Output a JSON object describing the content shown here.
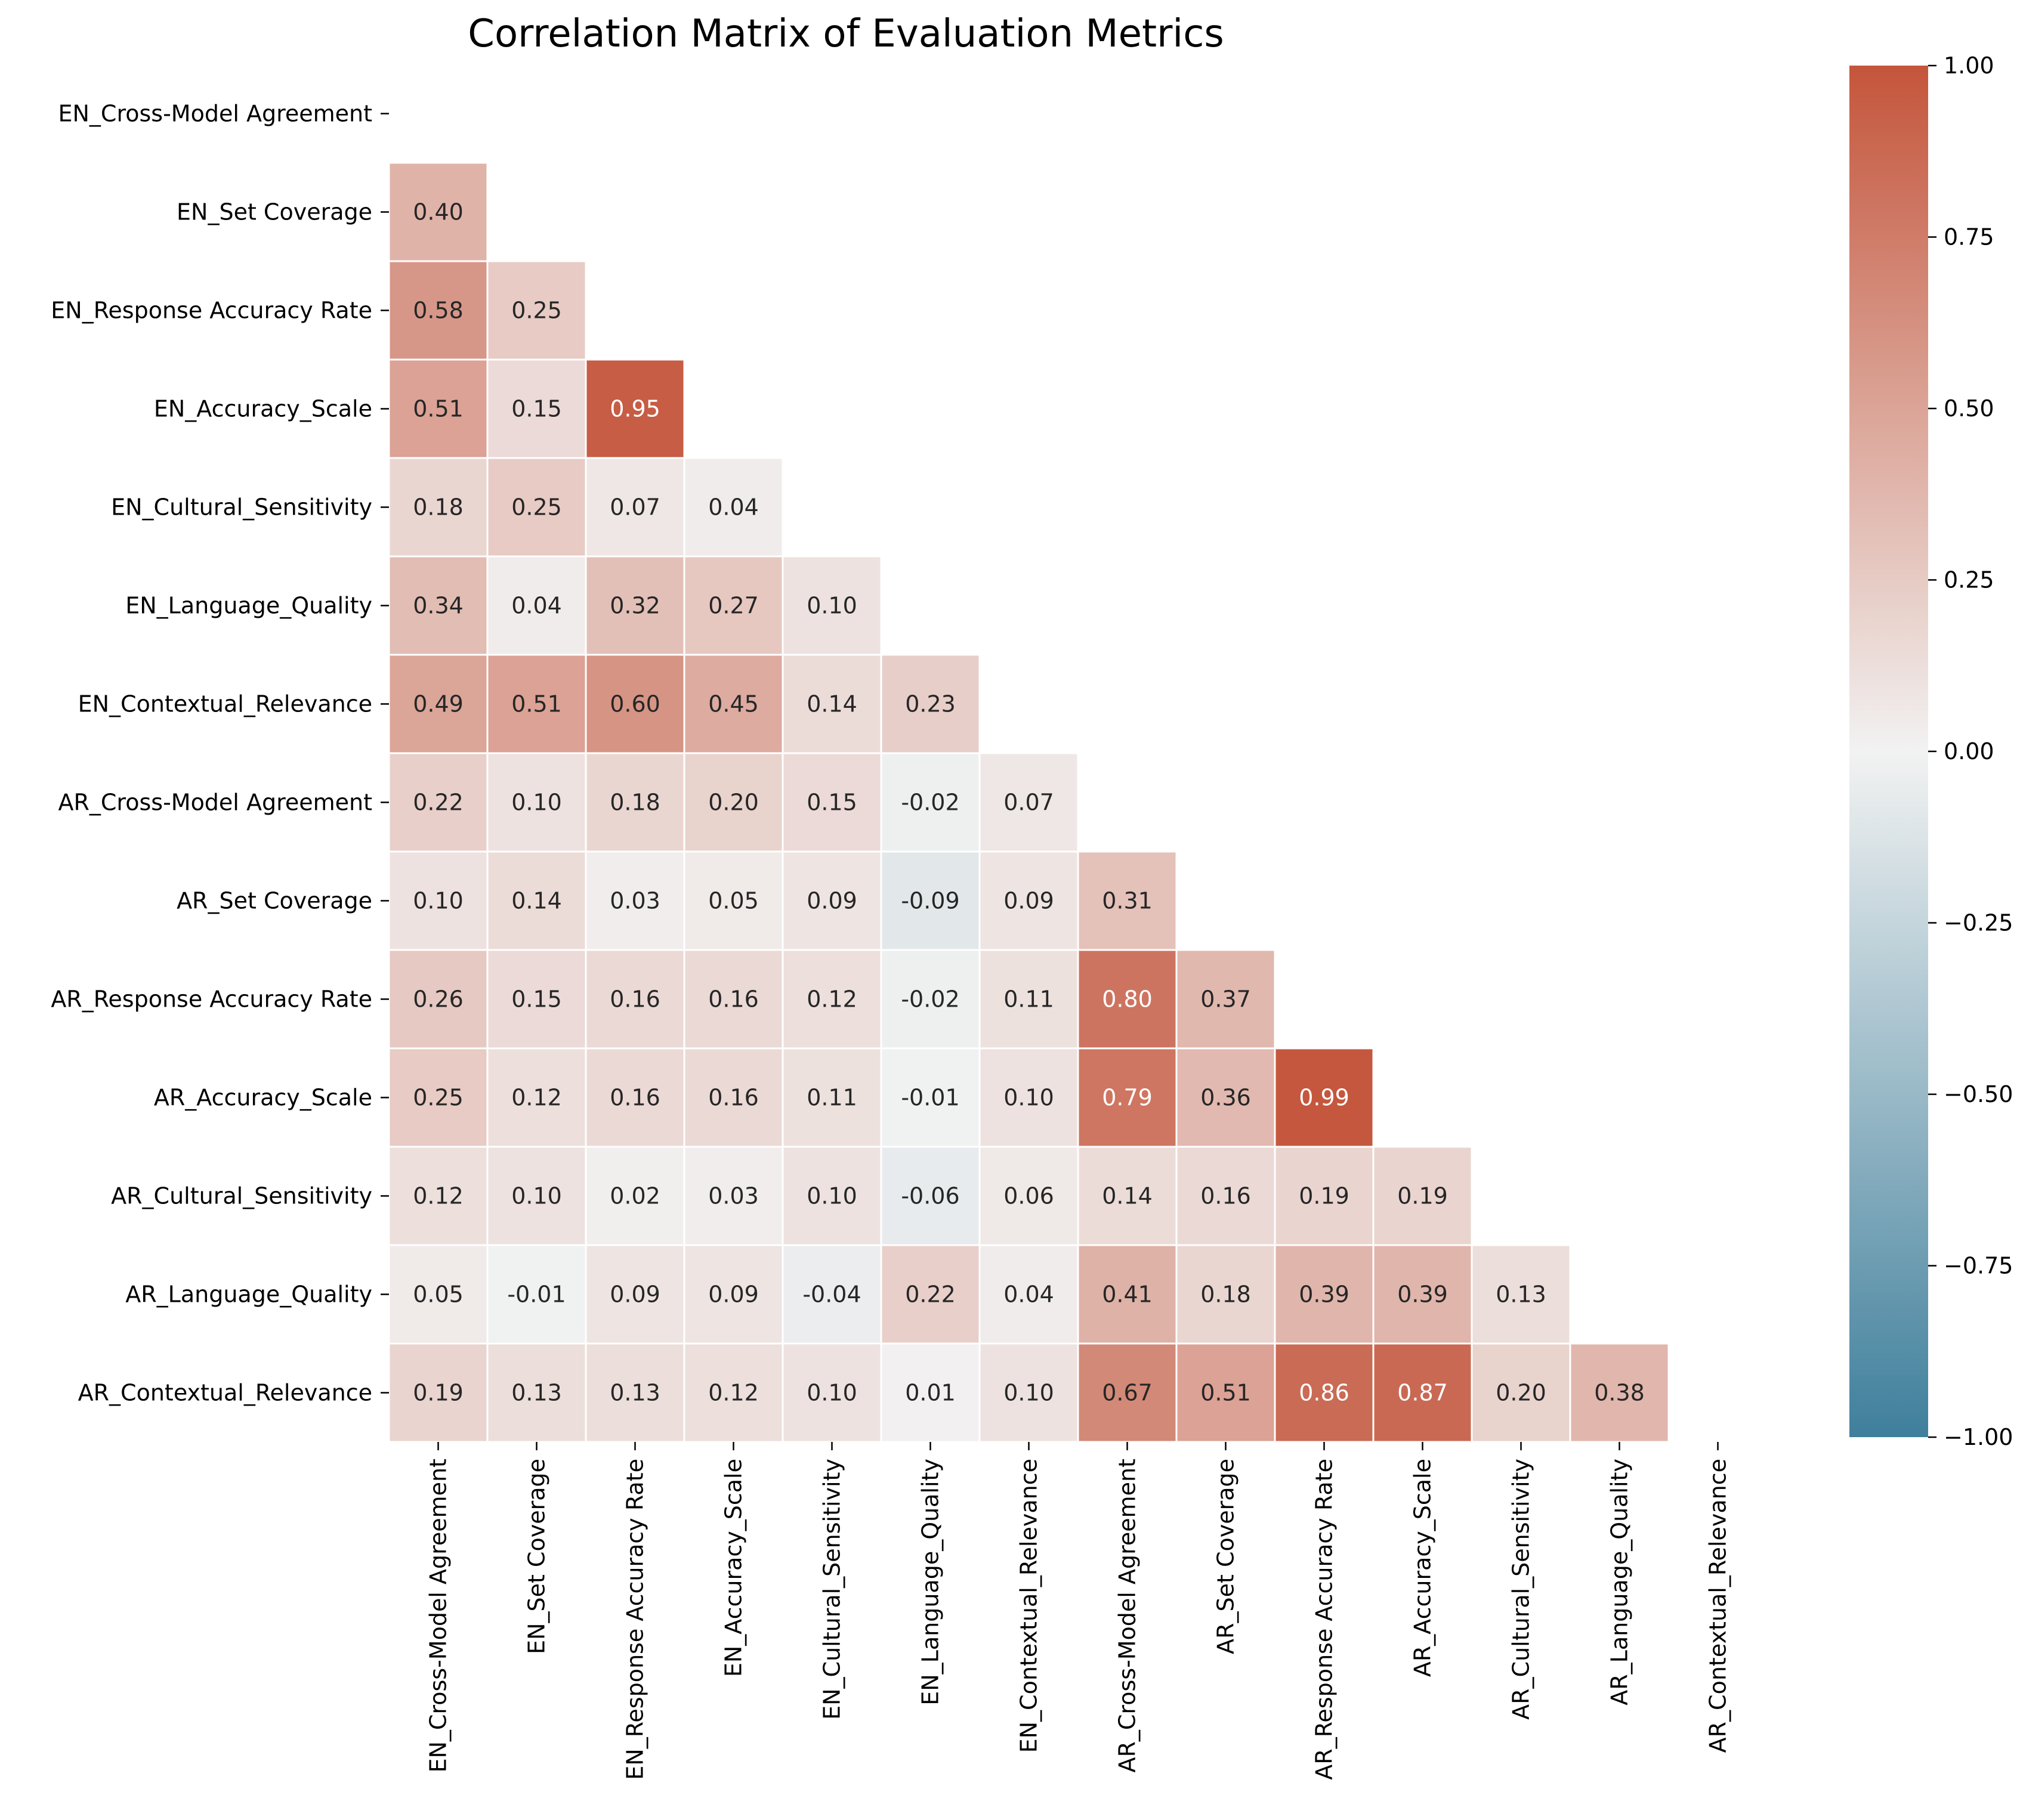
{
  "chart_data": {
    "type": "heatmap",
    "title": "Correlation Matrix of Evaluation Metrics",
    "labels": [
      "EN_Cross-Model Agreement",
      "EN_Set Coverage",
      "EN_Response Accuracy Rate",
      "EN_Accuracy_Scale",
      "EN_Cultural_Sensitivity",
      "EN_Language_Quality",
      "EN_Contextual_Relevance",
      "AR_Cross-Model Agreement",
      "AR_Set Coverage",
      "AR_Response Accuracy Rate",
      "AR_Accuracy_Scale",
      "AR_Cultural_Sensitivity",
      "AR_Language_Quality",
      "AR_Contextual_Relevance"
    ],
    "matrix_lower_triangle": [
      [],
      [
        0.4
      ],
      [
        0.58,
        0.25
      ],
      [
        0.51,
        0.15,
        0.95
      ],
      [
        0.18,
        0.25,
        0.07,
        0.04
      ],
      [
        0.34,
        0.04,
        0.32,
        0.27,
        0.1
      ],
      [
        0.49,
        0.51,
        0.6,
        0.45,
        0.14,
        0.23
      ],
      [
        0.22,
        0.1,
        0.18,
        0.2,
        0.15,
        -0.02,
        0.07
      ],
      [
        0.1,
        0.14,
        0.03,
        0.05,
        0.09,
        -0.09,
        0.09,
        0.31
      ],
      [
        0.26,
        0.15,
        0.16,
        0.16,
        0.12,
        -0.02,
        0.11,
        0.8,
        0.37
      ],
      [
        0.25,
        0.12,
        0.16,
        0.16,
        0.11,
        -0.01,
        0.1,
        0.79,
        0.36,
        0.99
      ],
      [
        0.12,
        0.1,
        0.02,
        0.03,
        0.1,
        -0.06,
        0.06,
        0.14,
        0.16,
        0.19,
        0.19
      ],
      [
        0.05,
        -0.01,
        0.09,
        0.09,
        -0.04,
        0.22,
        0.04,
        0.41,
        0.18,
        0.39,
        0.39,
        0.13
      ],
      [
        0.19,
        0.13,
        0.13,
        0.12,
        0.1,
        0.01,
        0.1,
        0.67,
        0.51,
        0.86,
        0.87,
        0.2,
        0.38
      ]
    ],
    "value_range": [
      -1.0,
      1.0
    ],
    "colormap": {
      "negative": "#3f7f9c",
      "zero": "#f2f2f2",
      "positive": "#c4553b"
    },
    "colorbar_ticks": [
      "1.00",
      "0.75",
      "0.50",
      "0.25",
      "0.00",
      "−0.25",
      "−0.50",
      "−0.75",
      "−1.00"
    ],
    "colorbar_tick_values": [
      1.0,
      0.75,
      0.5,
      0.25,
      0.0,
      -0.25,
      -0.5,
      -0.75,
      -1.0
    ],
    "grid_lines": "white cell borders",
    "mask": "upper triangle and diagonal"
  }
}
